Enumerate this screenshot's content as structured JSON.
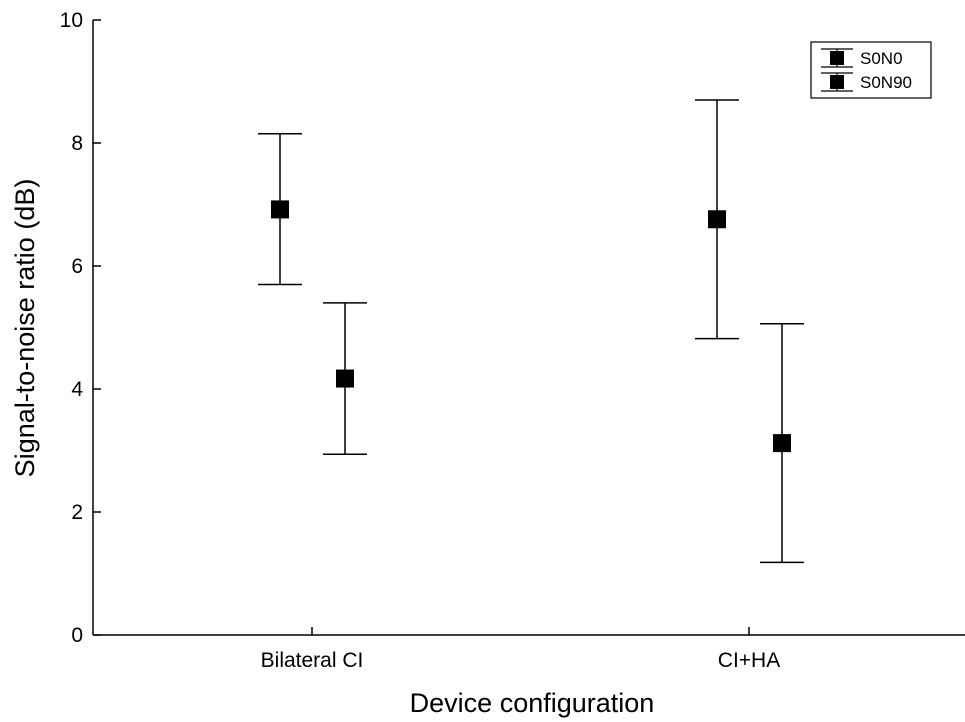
{
  "chart_data": {
    "type": "scatter",
    "title": "",
    "xlabel": "Device configuration",
    "ylabel": "Signal-to-noise ratio (dB)",
    "categories": [
      "Bilateral CI",
      "CI+HA"
    ],
    "ylim": [
      0,
      10
    ],
    "yticks": [
      "0",
      "2",
      "4",
      "6",
      "8",
      "10"
    ],
    "grid": false,
    "legend_position": "top-right",
    "marker_color": "#000000",
    "series": [
      {
        "name": "S0N0",
        "marker": "square",
        "points": [
          {
            "category": "Bilateral CI",
            "mean": 6.92,
            "lower": 5.7,
            "upper": 8.15
          },
          {
            "category": "CI+HA",
            "mean": 6.76,
            "lower": 4.82,
            "upper": 8.7
          }
        ]
      },
      {
        "name": "S0N90",
        "marker": "square",
        "points": [
          {
            "category": "Bilateral CI",
            "mean": 4.17,
            "lower": 2.94,
            "upper": 5.4
          },
          {
            "category": "CI+HA",
            "mean": 3.12,
            "lower": 1.18,
            "upper": 5.06
          }
        ]
      }
    ]
  }
}
